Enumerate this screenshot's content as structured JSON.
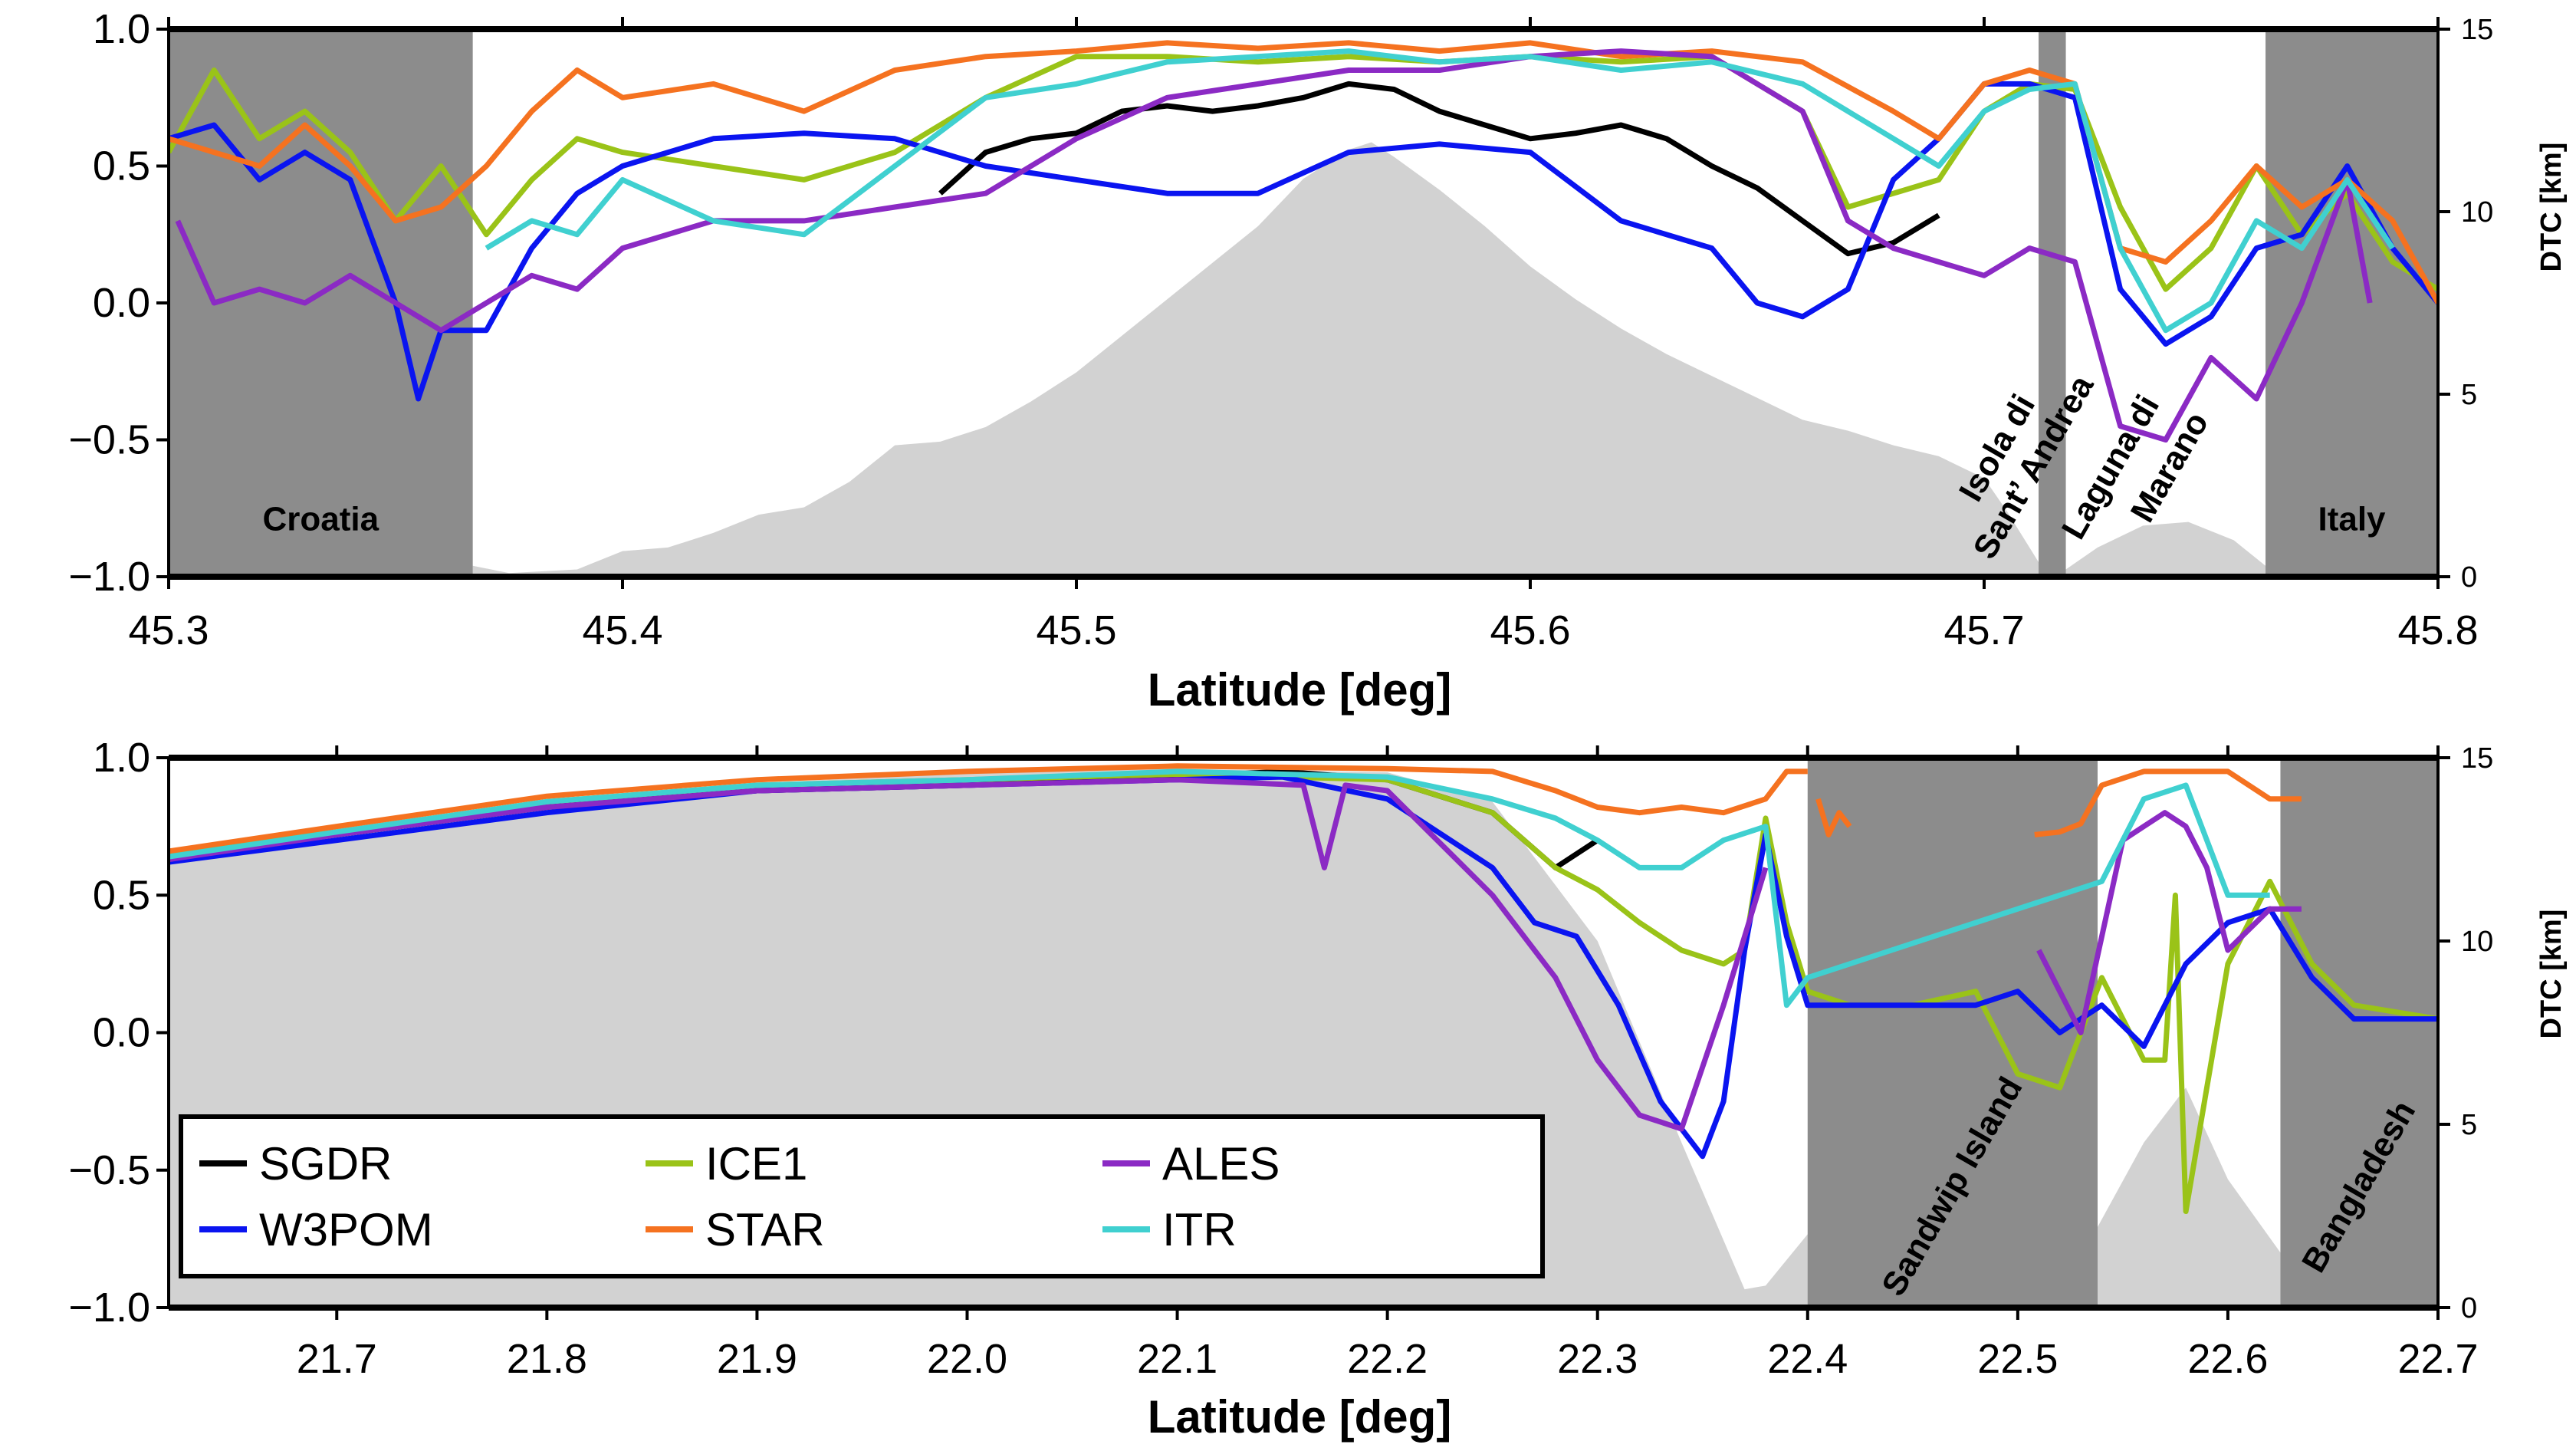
{
  "chart_data": [
    {
      "type": "line",
      "id": "adriatic",
      "xlabel": "Latitude [deg]",
      "ylabel": "",
      "ylabel_right": "DTC [km]",
      "xlim": [
        45.3,
        45.8
      ],
      "ylim": [
        -1.0,
        1.0
      ],
      "ylim_right": [
        0,
        15
      ],
      "xticks": [
        "45.3",
        "45.4",
        "45.5",
        "45.6",
        "45.7",
        "45.8"
      ],
      "yticks": [
        "−1.0",
        "−0.5",
        "0.0",
        "0.5",
        "1.0"
      ],
      "yticks_right": [
        "0",
        "5",
        "10",
        "15"
      ],
      "land_regions": [
        {
          "x0": 45.3,
          "x1": 45.367,
          "label": "Croatia"
        },
        {
          "x0": 45.712,
          "x1": 45.718,
          "label": ""
        },
        {
          "x0": 45.762,
          "x1": 45.8,
          "label": "Italy"
        }
      ],
      "annotations": [
        {
          "text": "Isola di",
          "x": 45.705,
          "y": -0.55
        },
        {
          "text": "Sant’ Andrea",
          "x": 45.713,
          "y": -0.62
        },
        {
          "text": "Laguna di",
          "x": 45.73,
          "y": -0.62
        },
        {
          "text": "Marano",
          "x": 45.743,
          "y": -0.62
        }
      ],
      "dtc": {
        "x": [
          45.367,
          45.375,
          45.39,
          45.4,
          45.41,
          45.42,
          45.43,
          45.44,
          45.45,
          45.46,
          45.47,
          45.48,
          45.49,
          45.5,
          45.51,
          45.52,
          45.53,
          45.54,
          45.55,
          45.56,
          45.565,
          45.57,
          45.58,
          45.59,
          45.6,
          45.61,
          45.62,
          45.63,
          45.64,
          45.65,
          45.66,
          45.67,
          45.68,
          45.69,
          45.7,
          45.705,
          45.712,
          45.718,
          45.725,
          45.735,
          45.745,
          45.755,
          45.762
        ],
        "y": [
          0.3,
          0.1,
          0.2,
          0.7,
          0.8,
          1.2,
          1.7,
          1.9,
          2.6,
          3.6,
          3.7,
          4.1,
          4.8,
          5.6,
          6.6,
          7.6,
          8.6,
          9.6,
          10.9,
          11.7,
          11.9,
          11.5,
          10.6,
          9.6,
          8.5,
          7.6,
          6.8,
          6.1,
          5.5,
          4.9,
          4.3,
          4.0,
          3.6,
          3.3,
          2.7,
          1.8,
          0.4,
          0.2,
          0.8,
          1.4,
          1.5,
          1.0,
          0.3
        ]
      },
      "series": [
        {
          "name": "SGDR",
          "color": "#000000",
          "x": [
            45.47,
            45.48,
            45.49,
            45.5,
            45.51,
            45.52,
            45.53,
            45.54,
            45.55,
            45.56,
            45.57,
            45.58,
            45.59,
            45.6,
            45.61,
            45.62,
            45.63,
            45.64,
            45.65,
            45.66,
            45.67,
            45.68,
            45.69
          ],
          "y": [
            0.4,
            0.55,
            0.6,
            0.62,
            0.7,
            0.72,
            0.7,
            0.72,
            0.75,
            0.8,
            0.78,
            0.7,
            0.65,
            0.6,
            0.62,
            0.65,
            0.6,
            0.5,
            0.42,
            0.3,
            0.18,
            0.22,
            0.32
          ]
        },
        {
          "name": "ICE1",
          "color": "#9ac318",
          "x": [
            45.3,
            45.31,
            45.32,
            45.33,
            45.34,
            45.35,
            45.36,
            45.37,
            45.38,
            45.39,
            45.4,
            45.42,
            45.44,
            45.46,
            45.48,
            45.5,
            45.52,
            45.54,
            45.56,
            45.58,
            45.6,
            45.62,
            45.64,
            45.66,
            45.67,
            45.68,
            45.69,
            45.7,
            45.71,
            45.72,
            45.73,
            45.74,
            45.75,
            45.76,
            45.77,
            45.78,
            45.79,
            45.8
          ],
          "y": [
            0.55,
            0.85,
            0.6,
            0.7,
            0.55,
            0.3,
            0.5,
            0.25,
            0.45,
            0.6,
            0.55,
            0.5,
            0.45,
            0.55,
            0.75,
            0.9,
            0.9,
            0.88,
            0.9,
            0.88,
            0.9,
            0.88,
            0.9,
            0.7,
            0.35,
            0.4,
            0.45,
            0.7,
            0.8,
            0.78,
            0.35,
            0.05,
            0.2,
            0.5,
            0.25,
            0.4,
            0.15,
            0.05
          ]
        },
        {
          "name": "W3POM",
          "color": "#0a14f0",
          "x": [
            45.3,
            45.31,
            45.32,
            45.33,
            45.34,
            45.35,
            45.355,
            45.36,
            45.37,
            45.38,
            45.39,
            45.4,
            45.42,
            45.44,
            45.46,
            45.48,
            45.5,
            45.52,
            45.54,
            45.56,
            45.58,
            45.6,
            45.62,
            45.64,
            45.65,
            45.66,
            45.67,
            45.68,
            45.69,
            45.7,
            45.71,
            45.72,
            45.73,
            45.74,
            45.75,
            45.76,
            45.77,
            45.78,
            45.79,
            45.8
          ],
          "y": [
            0.6,
            0.65,
            0.45,
            0.55,
            0.45,
            0.0,
            -0.35,
            -0.1,
            -0.1,
            0.2,
            0.4,
            0.5,
            0.6,
            0.62,
            0.6,
            0.5,
            0.45,
            0.4,
            0.4,
            0.55,
            0.58,
            0.55,
            0.3,
            0.2,
            0.0,
            -0.05,
            0.05,
            0.45,
            0.6,
            0.8,
            0.8,
            0.75,
            0.05,
            -0.15,
            -0.05,
            0.2,
            0.25,
            0.5,
            0.2,
            0.0
          ]
        },
        {
          "name": "STAR",
          "color": "#f57220",
          "x": [
            45.3,
            45.31,
            45.32,
            45.33,
            45.34,
            45.35,
            45.36,
            45.37,
            45.38,
            45.39,
            45.4,
            45.42,
            45.44,
            45.46,
            45.48,
            45.5,
            45.52,
            45.54,
            45.56,
            45.58,
            45.6,
            45.62,
            45.64,
            45.66,
            45.68,
            45.69,
            45.7,
            45.71,
            45.72,
            45.73,
            45.74,
            45.75,
            45.76,
            45.77,
            45.78,
            45.79,
            45.8
          ],
          "y": [
            0.6,
            0.55,
            0.5,
            0.65,
            0.5,
            0.3,
            0.35,
            0.5,
            0.7,
            0.85,
            0.75,
            0.8,
            0.7,
            0.85,
            0.9,
            0.92,
            0.95,
            0.93,
            0.95,
            0.92,
            0.95,
            0.9,
            0.92,
            0.88,
            0.7,
            0.6,
            0.8,
            0.85,
            0.8,
            0.2,
            0.15,
            0.3,
            0.5,
            0.35,
            0.45,
            0.3,
            0.0
          ]
        },
        {
          "name": "ALES",
          "color": "#8b2ac4",
          "x": [
            45.302,
            45.31,
            45.32,
            45.33,
            45.34,
            45.35,
            45.36,
            45.37,
            45.38,
            45.39,
            45.4,
            45.42,
            45.44,
            45.46,
            45.48,
            45.5,
            45.52,
            45.54,
            45.56,
            45.58,
            45.6,
            45.62,
            45.64,
            45.66,
            45.67,
            45.68,
            45.69,
            45.7,
            45.71,
            45.72,
            45.73,
            45.74,
            45.75,
            45.76,
            45.77,
            45.78,
            45.785
          ],
          "y": [
            0.3,
            0.0,
            0.05,
            0.0,
            0.1,
            0.0,
            -0.1,
            0.0,
            0.1,
            0.05,
            0.2,
            0.3,
            0.3,
            0.35,
            0.4,
            0.6,
            0.75,
            0.8,
            0.85,
            0.85,
            0.9,
            0.92,
            0.9,
            0.7,
            0.3,
            0.2,
            0.15,
            0.1,
            0.2,
            0.15,
            -0.45,
            -0.5,
            -0.2,
            -0.35,
            0.0,
            0.45,
            0.0
          ]
        },
        {
          "name": "ITR",
          "color": "#40d0d0",
          "x": [
            45.37,
            45.38,
            45.39,
            45.4,
            45.42,
            45.44,
            45.46,
            45.48,
            45.5,
            45.52,
            45.54,
            45.56,
            45.58,
            45.6,
            45.62,
            45.64,
            45.66,
            45.68,
            45.69,
            45.7,
            45.71,
            45.72,
            45.73,
            45.74,
            45.75,
            45.76,
            45.77,
            45.78,
            45.79
          ],
          "y": [
            0.2,
            0.3,
            0.25,
            0.45,
            0.3,
            0.25,
            0.5,
            0.75,
            0.8,
            0.88,
            0.9,
            0.92,
            0.88,
            0.9,
            0.85,
            0.88,
            0.8,
            0.6,
            0.5,
            0.7,
            0.78,
            0.8,
            0.2,
            -0.1,
            0.0,
            0.3,
            0.2,
            0.45,
            0.2
          ]
        }
      ]
    },
    {
      "type": "line",
      "id": "bay_of_bengal",
      "xlabel": "Latitude [deg]",
      "ylabel": "",
      "ylabel_right": "DTC [km]",
      "xlim": [
        21.62,
        22.7
      ],
      "ylim": [
        -1.0,
        1.0
      ],
      "ylim_right": [
        0,
        15
      ],
      "xticks": [
        "21.7",
        "21.8",
        "21.9",
        "22.0",
        "22.1",
        "22.2",
        "22.3",
        "22.4",
        "22.5",
        "22.6",
        "22.7"
      ],
      "yticks": [
        "−1.0",
        "−0.5",
        "0.0",
        "0.5",
        "1.0"
      ],
      "yticks_right": [
        "0",
        "5",
        "10",
        "15"
      ],
      "land_regions": [
        {
          "x0": 22.4,
          "x1": 22.538,
          "label": "Sandwip Island"
        },
        {
          "x0": 22.625,
          "x1": 22.7,
          "label": "Bangladesh"
        }
      ],
      "dtc": {
        "x": [
          21.62,
          21.7,
          21.8,
          21.9,
          22.0,
          22.1,
          22.2,
          22.25,
          22.3,
          22.34,
          22.37,
          22.38,
          22.4,
          22.538,
          22.56,
          22.58,
          22.6,
          22.625
        ],
        "y": [
          12.4,
          13.1,
          13.8,
          14.3,
          14.6,
          14.7,
          14.6,
          13.8,
          10.0,
          4.5,
          0.5,
          0.6,
          2.0,
          2.2,
          4.5,
          6.0,
          3.5,
          1.5
        ]
      },
      "series": [
        {
          "name": "SGDR",
          "color": "#000000",
          "x": [
            21.62,
            21.7,
            21.8,
            21.9,
            22.0,
            22.1,
            22.15,
            22.2,
            22.25,
            22.28,
            22.3
          ],
          "y": [
            0.65,
            0.72,
            0.82,
            0.88,
            0.9,
            0.93,
            0.95,
            0.92,
            0.8,
            0.6,
            0.7
          ]
        },
        {
          "name": "ICE1",
          "color": "#9ac318",
          "x": [
            21.62,
            21.7,
            21.8,
            21.9,
            22.0,
            22.1,
            22.2,
            22.25,
            22.28,
            22.3,
            22.32,
            22.34,
            22.36,
            22.37,
            22.38,
            22.39,
            22.4,
            22.42,
            22.45,
            22.48,
            22.5,
            22.52,
            22.54,
            22.56,
            22.57,
            22.575,
            22.58,
            22.6,
            22.62,
            22.64,
            22.66,
            22.7
          ],
          "y": [
            0.65,
            0.73,
            0.84,
            0.9,
            0.92,
            0.94,
            0.92,
            0.8,
            0.6,
            0.52,
            0.4,
            0.3,
            0.25,
            0.3,
            0.78,
            0.4,
            0.15,
            0.1,
            0.1,
            0.15,
            -0.15,
            -0.2,
            0.2,
            -0.1,
            -0.1,
            0.5,
            -0.65,
            0.25,
            0.55,
            0.25,
            0.1,
            0.05
          ]
        },
        {
          "name": "W3POM",
          "color": "#0a14f0",
          "x": [
            21.62,
            21.7,
            21.8,
            21.9,
            22.0,
            22.1,
            22.15,
            22.2,
            22.25,
            22.27,
            22.29,
            22.31,
            22.33,
            22.35,
            22.36,
            22.37,
            22.38,
            22.39,
            22.4,
            22.42,
            22.45,
            22.48,
            22.5,
            22.52,
            22.54,
            22.56,
            22.58,
            22.6,
            22.62,
            22.64,
            22.66,
            22.7
          ],
          "y": [
            0.62,
            0.7,
            0.8,
            0.88,
            0.9,
            0.92,
            0.93,
            0.85,
            0.6,
            0.4,
            0.35,
            0.1,
            -0.25,
            -0.45,
            -0.25,
            0.3,
            0.72,
            0.35,
            0.1,
            0.1,
            0.1,
            0.1,
            0.15,
            0.0,
            0.1,
            -0.05,
            0.25,
            0.4,
            0.45,
            0.2,
            0.05,
            0.05
          ]
        },
        {
          "name": "STAR",
          "color": "#f57220",
          "x": [
            21.62,
            21.7,
            21.8,
            21.9,
            22.0,
            22.1,
            22.2,
            22.25,
            22.28,
            22.3,
            22.32,
            22.34,
            22.36,
            22.38,
            22.39,
            22.4
          ],
          "y": [
            0.66,
            0.75,
            0.86,
            0.92,
            0.95,
            0.97,
            0.96,
            0.95,
            0.88,
            0.82,
            0.8,
            0.82,
            0.8,
            0.85,
            0.95,
            0.95
          ]
        },
        {
          "name": "STAR",
          "color": "#f57220",
          "x": [
            22.405,
            22.41,
            22.415,
            22.42
          ],
          "y": [
            0.85,
            0.72,
            0.8,
            0.75
          ]
        },
        {
          "name": "STAR",
          "color": "#f57220",
          "x": [
            22.508,
            22.52,
            22.53,
            22.54,
            22.56,
            22.58,
            22.6,
            22.62,
            22.635
          ],
          "y": [
            0.72,
            0.73,
            0.76,
            0.9,
            0.95,
            0.95,
            0.95,
            0.85,
            0.85
          ]
        },
        {
          "name": "ALES",
          "color": "#8b2ac4",
          "x": [
            21.62,
            21.7,
            21.8,
            21.9,
            22.0,
            22.1,
            22.16,
            22.17,
            22.18,
            22.2,
            22.25,
            22.28,
            22.3,
            22.32,
            22.34,
            22.36,
            22.37,
            22.38
          ],
          "y": [
            0.63,
            0.72,
            0.82,
            0.88,
            0.9,
            0.92,
            0.9,
            0.6,
            0.9,
            0.88,
            0.5,
            0.2,
            -0.1,
            -0.3,
            -0.35,
            0.1,
            0.35,
            0.6
          ]
        },
        {
          "name": "ALES",
          "color": "#8b2ac4",
          "x": [
            22.51,
            22.53,
            22.55,
            22.56,
            22.57,
            22.58,
            22.59,
            22.6,
            22.62,
            22.635
          ],
          "y": [
            0.3,
            0.0,
            0.7,
            0.75,
            0.8,
            0.75,
            0.6,
            0.3,
            0.45,
            0.45
          ]
        },
        {
          "name": "ITR",
          "color": "#40d0d0",
          "x": [
            21.62,
            21.7,
            21.8,
            21.9,
            22.0,
            22.1,
            22.2,
            22.25,
            22.28,
            22.3,
            22.32,
            22.34,
            22.36,
            22.38,
            22.39,
            22.4,
            22.54,
            22.56,
            22.58,
            22.6,
            22.62
          ],
          "y": [
            0.64,
            0.73,
            0.84,
            0.9,
            0.92,
            0.95,
            0.93,
            0.85,
            0.78,
            0.7,
            0.6,
            0.6,
            0.7,
            0.75,
            0.1,
            0.2,
            0.55,
            0.85,
            0.9,
            0.5,
            0.5
          ]
        }
      ]
    }
  ],
  "legend": {
    "items": [
      {
        "label": "SGDR",
        "color": "#000000"
      },
      {
        "label": "ICE1",
        "color": "#9ac318"
      },
      {
        "label": "ALES",
        "color": "#8b2ac4"
      },
      {
        "label": "W3POM",
        "color": "#0a14f0"
      },
      {
        "label": "STAR",
        "color": "#f57220"
      },
      {
        "label": "ITR",
        "color": "#40d0d0"
      }
    ]
  }
}
